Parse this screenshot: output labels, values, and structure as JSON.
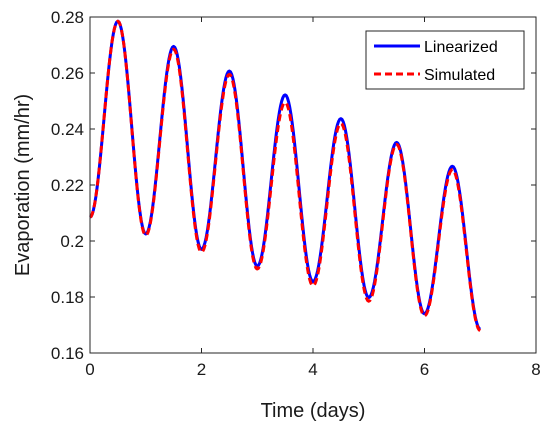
{
  "chart_data": {
    "type": "line",
    "title": "",
    "xlabel": "Time (days)",
    "ylabel": "Evaporation (mm/hr)",
    "xlim": [
      0,
      8
    ],
    "ylim": [
      0.16,
      0.28
    ],
    "xticks": [
      0,
      2,
      4,
      6,
      8
    ],
    "xtick_labels": [
      "0",
      "2",
      "4",
      "6",
      "8"
    ],
    "yticks": [
      0.16,
      0.18,
      0.2,
      0.22,
      0.24,
      0.26,
      0.28
    ],
    "ytick_labels": [
      "0.16",
      "0.18",
      "0.2",
      "0.22",
      "0.24",
      "0.26",
      "0.28"
    ],
    "grid": false,
    "legend_position": "top-right",
    "x_range": [
      0,
      7
    ],
    "series": [
      {
        "name": "Linearized",
        "color": "#0000ff",
        "style": "solid",
        "peaks": [
          [
            0.5,
            0.2785
          ],
          [
            1.5,
            0.2695
          ],
          [
            2.5,
            0.2607
          ],
          [
            3.5,
            0.2522
          ],
          [
            4.5,
            0.2437
          ],
          [
            5.5,
            0.2352
          ],
          [
            6.5,
            0.2267
          ]
        ],
        "troughs": [
          [
            0.0,
            0.2085
          ],
          [
            1.0,
            0.2025
          ],
          [
            2.0,
            0.197
          ],
          [
            3.0,
            0.191
          ],
          [
            4.0,
            0.1855
          ],
          [
            5.0,
            0.1798
          ],
          [
            6.0,
            0.174
          ],
          [
            7.0,
            0.1685
          ]
        ]
      },
      {
        "name": "Simulated",
        "color": "#ff0000",
        "style": "dashed",
        "peaks": [
          [
            0.5,
            0.2785
          ],
          [
            1.5,
            0.2685
          ],
          [
            2.5,
            0.2595
          ],
          [
            3.5,
            0.2495
          ],
          [
            4.5,
            0.242
          ],
          [
            5.5,
            0.2345
          ],
          [
            6.5,
            0.2255
          ]
        ],
        "troughs": [
          [
            0.0,
            0.2085
          ],
          [
            1.0,
            0.202
          ],
          [
            2.0,
            0.196
          ],
          [
            3.0,
            0.19
          ],
          [
            4.0,
            0.184
          ],
          [
            5.0,
            0.1785
          ],
          [
            6.0,
            0.1733
          ],
          [
            7.0,
            0.168
          ]
        ]
      }
    ]
  }
}
